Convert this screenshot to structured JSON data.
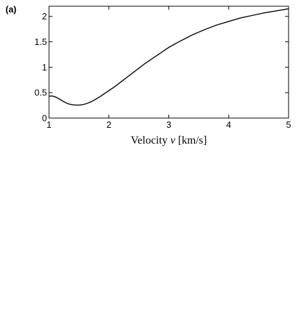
{
  "panel_label": "(a)",
  "chart_data": {
    "type": "line",
    "title": "",
    "xlabel": {
      "prefix": "Velocity ",
      "variable": "v",
      "unit": " [km/s]"
    },
    "ylabel": "",
    "xlim": [
      1,
      5
    ],
    "ylim": [
      0,
      2.2
    ],
    "grid": false,
    "xticks": [
      1,
      2,
      3,
      4,
      5
    ],
    "xtick_labels": [
      "1",
      "2",
      "3",
      "4",
      "5"
    ],
    "yticks": [
      0,
      0.5,
      1,
      1.5,
      2
    ],
    "ytick_labels": [
      "0",
      "0.5",
      "1",
      "1.5",
      "2"
    ],
    "line_color": "#000000",
    "series": [
      {
        "x": [
          1.0,
          1.05,
          1.1,
          1.15,
          1.2,
          1.25,
          1.3,
          1.35,
          1.4,
          1.45,
          1.5,
          1.55,
          1.6,
          1.65,
          1.7,
          1.75,
          1.8,
          1.85,
          1.9,
          1.95,
          2.0,
          2.1,
          2.2,
          2.3,
          2.4,
          2.5,
          2.6,
          2.7,
          2.8,
          2.9,
          3.0,
          3.2,
          3.4,
          3.6,
          3.8,
          4.0,
          4.2,
          4.4,
          4.6,
          4.8,
          5.0
        ],
        "y": [
          0.43,
          0.435,
          0.42,
          0.39,
          0.355,
          0.32,
          0.29,
          0.27,
          0.26,
          0.255,
          0.255,
          0.26,
          0.275,
          0.295,
          0.32,
          0.35,
          0.385,
          0.42,
          0.46,
          0.5,
          0.54,
          0.62,
          0.71,
          0.8,
          0.89,
          0.98,
          1.07,
          1.15,
          1.23,
          1.31,
          1.39,
          1.52,
          1.64,
          1.74,
          1.83,
          1.9,
          1.97,
          2.02,
          2.07,
          2.11,
          2.15
        ]
      }
    ]
  }
}
